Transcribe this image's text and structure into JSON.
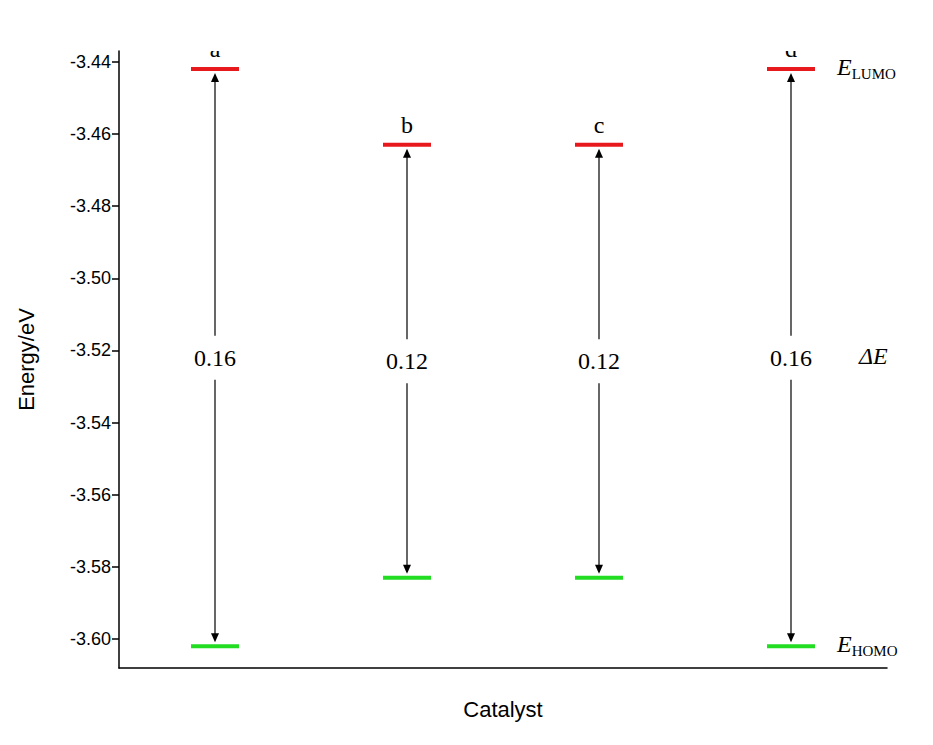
{
  "chart_data": {
    "type": "energy_levels",
    "x_label": "Catalyst",
    "y_label": "Energy/eV",
    "categories": [
      "a",
      "b",
      "c",
      "d"
    ],
    "levels": [
      {
        "label": {
          "text": "E",
          "subscript": "LUMO"
        },
        "color": "#e8191c",
        "values": [
          -3.442,
          -3.463,
          -3.463,
          -3.442
        ]
      },
      {
        "label": {
          "text": "E",
          "subscript": "HOMO"
        },
        "color": "#22dd22",
        "values": [
          -3.602,
          -3.583,
          -3.583,
          -3.602
        ]
      }
    ],
    "gap": {
      "label": "ΔE",
      "values": [
        0.16,
        0.12,
        0.12,
        0.16
      ]
    },
    "ylim": [
      -3.608,
      -3.437
    ],
    "yticks": [
      {
        "value": -3.6,
        "label": "-3.60"
      },
      -3.58,
      -3.56,
      -3.54,
      -3.52,
      {
        "value": -3.5,
        "label": "-3.50"
      },
      -3.48,
      -3.46,
      -3.44
    ],
    "grid": false,
    "data_labels": true,
    "tick_labels": "y"
  }
}
